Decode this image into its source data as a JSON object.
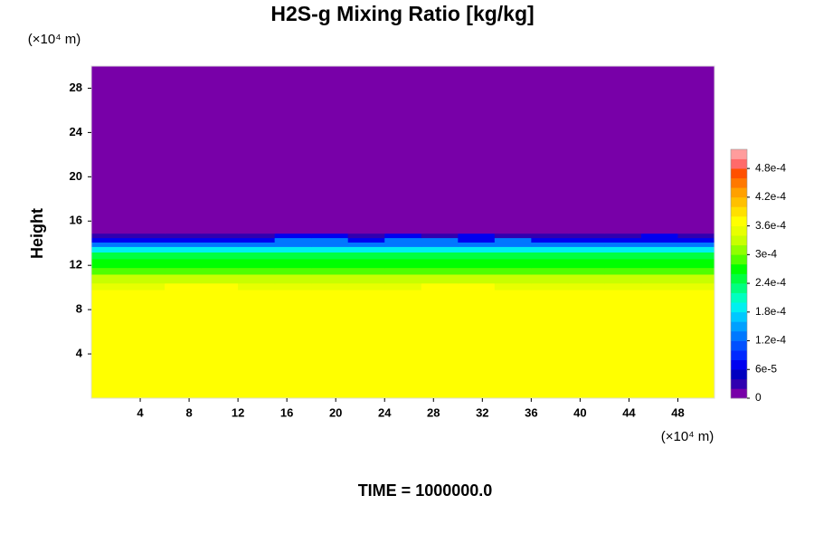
{
  "chart_data": {
    "type": "heatmap",
    "title": "H2S-g Mixing Ratio [kg/kg]",
    "ylabel": "Height",
    "yunit": "(×10⁴ m)",
    "xunit": "(×10⁴ m)",
    "footer": "TIME = 1000000.0",
    "xlim": [
      0,
      51
    ],
    "ylim": [
      0,
      30
    ],
    "xticks": [
      4,
      8,
      12,
      16,
      20,
      24,
      28,
      32,
      36,
      40,
      44,
      48
    ],
    "yticks": [
      4,
      8,
      12,
      16,
      20,
      24,
      28
    ],
    "x": [
      0,
      3,
      6,
      9,
      12,
      15,
      18,
      21,
      24,
      27,
      30,
      33,
      36,
      39,
      42,
      45,
      48,
      51
    ],
    "y": [
      0,
      9.8,
      10.4,
      11.2,
      11.8,
      12.6,
      13.2,
      13.7,
      14.1,
      14.5,
      14.9,
      30
    ],
    "values": [
      [
        0.00037,
        0.00037,
        0.00037,
        0.00037,
        0.00037,
        0.00037,
        0.00037,
        0.00037,
        0.00037,
        0.00037,
        0.00037,
        0.00037,
        0.00037,
        0.00037,
        0.00037,
        0.00037,
        0.00037
      ],
      [
        0.00035,
        0.00035,
        0.00037,
        0.00037,
        0.00035,
        0.00035,
        0.00035,
        0.00035,
        0.00035,
        0.00037,
        0.00037,
        0.00035,
        0.00035,
        0.00035,
        0.00035,
        0.00035,
        0.00035
      ],
      [
        0.00033,
        0.00033,
        0.00033,
        0.00033,
        0.00033,
        0.00033,
        0.00033,
        0.00033,
        0.00033,
        0.00033,
        0.00033,
        0.00033,
        0.00033,
        0.00033,
        0.00033,
        0.00033,
        0.00033
      ],
      [
        0.0003,
        0.0003,
        0.0003,
        0.0003,
        0.0003,
        0.0003,
        0.0003,
        0.0003,
        0.0003,
        0.0003,
        0.0003,
        0.0003,
        0.0003,
        0.0003,
        0.0003,
        0.0003,
        0.0003
      ],
      [
        0.00027,
        0.00027,
        0.00027,
        0.00027,
        0.00027,
        0.00027,
        0.00027,
        0.00027,
        0.00027,
        0.00027,
        0.00027,
        0.00027,
        0.00027,
        0.00027,
        0.00027,
        0.00027,
        0.00027
      ],
      [
        0.00024,
        0.00024,
        0.00024,
        0.00024,
        0.00024,
        0.00024,
        0.00024,
        0.00024,
        0.00024,
        0.00024,
        0.00024,
        0.00024,
        0.00024,
        0.00024,
        0.00024,
        0.00024,
        0.00024
      ],
      [
        0.00018,
        0.00018,
        0.00018,
        0.00018,
        0.00018,
        0.00018,
        0.00018,
        0.00018,
        0.00018,
        0.00018,
        0.00018,
        0.00018,
        0.00018,
        0.00018,
        0.00018,
        0.00018,
        0.00018
      ],
      [
        0.00012,
        0.00012,
        0.00012,
        0.00012,
        0.00012,
        0.00012,
        0.00012,
        0.00012,
        0.00012,
        0.00012,
        0.00012,
        0.00012,
        0.00012,
        0.00012,
        0.00012,
        0.00012,
        0.00012
      ],
      [
        6e-05,
        6e-05,
        6e-05,
        6e-05,
        6e-05,
        0.00012,
        0.00012,
        6e-05,
        0.00012,
        0.00012,
        6e-05,
        0.00012,
        6e-05,
        6e-05,
        6e-05,
        6e-05,
        6e-05
      ],
      [
        2e-05,
        2e-05,
        2e-05,
        2e-05,
        2e-05,
        6e-05,
        6e-05,
        2e-05,
        6e-05,
        2e-05,
        6e-05,
        2e-05,
        2e-05,
        2e-05,
        2e-05,
        6e-05,
        2e-05
      ],
      [
        0,
        0,
        0,
        0,
        0,
        0,
        0,
        0,
        0,
        0,
        0,
        0,
        0,
        0,
        0,
        0,
        0
      ]
    ],
    "clim": [
      0,
      0.00052
    ],
    "colors": [
      "#7800a8",
      "#3000b0",
      "#0000c0",
      "#0000f0",
      "#0028ff",
      "#0050ff",
      "#0078ff",
      "#00a0ff",
      "#00c8ff",
      "#00f0f0",
      "#00ffc0",
      "#00ff80",
      "#00ff40",
      "#00ff00",
      "#50ff00",
      "#90ff00",
      "#c8ff00",
      "#e8ff00",
      "#ffff00",
      "#ffe000",
      "#ffc000",
      "#ffa000",
      "#ff7800",
      "#ff5000",
      "#ff6a6a",
      "#ff9c9c"
    ],
    "cticks": [
      0,
      {
        "value": 6e-05,
        "label": "6e-5"
      },
      {
        "value": 0.00012,
        "label": "1.2e-4"
      },
      {
        "value": 0.00018,
        "label": "1.8e-4"
      },
      {
        "value": 0.00024,
        "label": "2.4e-4"
      },
      {
        "value": 0.0003,
        "label": "3e-4"
      },
      {
        "value": 0.00036,
        "label": "3.6e-4"
      },
      {
        "value": 0.00042,
        "label": "4.2e-4"
      },
      {
        "value": 0.00048,
        "label": "4.8e-4"
      }
    ]
  }
}
